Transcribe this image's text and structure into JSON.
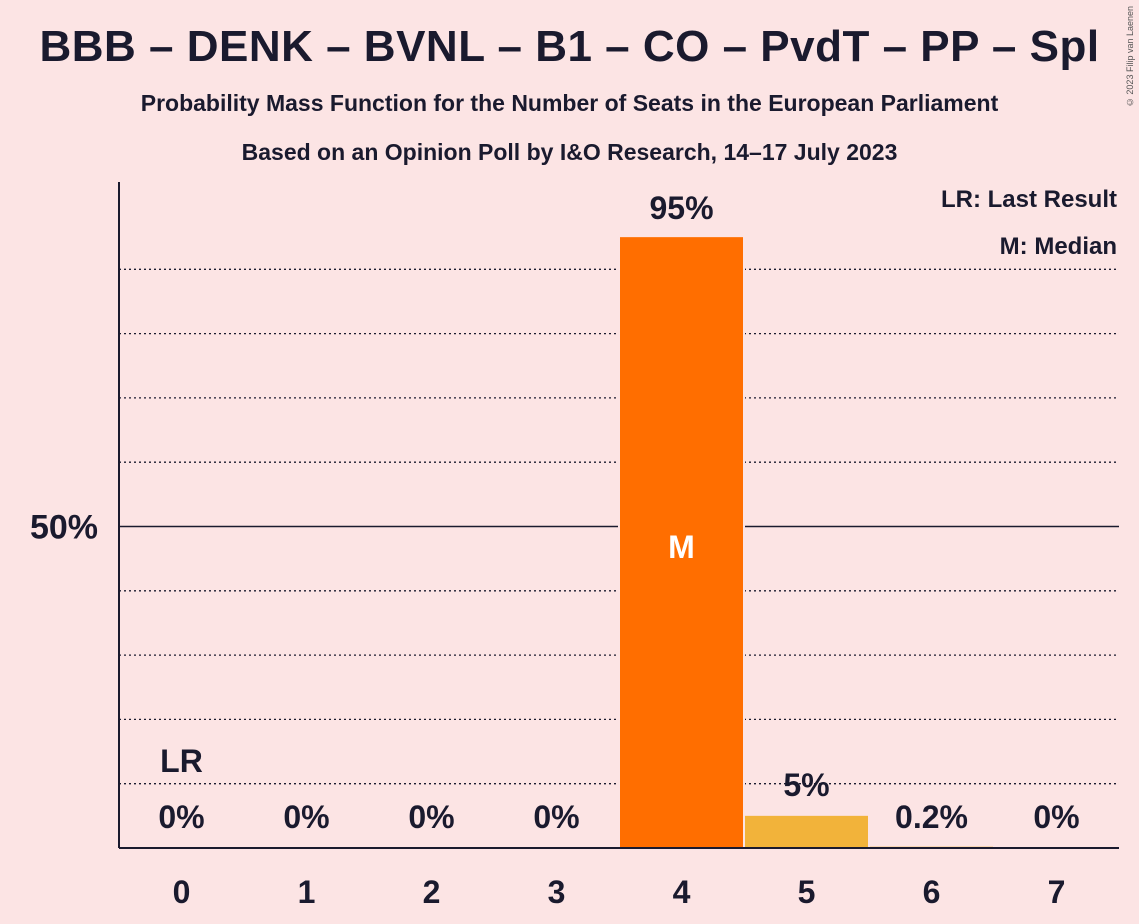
{
  "header": {
    "title": "BBB – DENK – BVNL – B1 – CO – PvdT – PP – Spl",
    "subtitle1": "Probability Mass Function for the Number of Seats in the European Parliament",
    "subtitle2": "Based on an Opinion Poll by I&O Research, 14–17 July 2023",
    "copyright": "© 2023 Filip van Laenen"
  },
  "legend": {
    "last_result": "LR: Last Result",
    "median": "M: Median"
  },
  "colors": {
    "background": "#fce4e4",
    "bar_main": "#ff6e00",
    "bar_secondary": "#f2b33a",
    "text": "#1a1a2e"
  },
  "chart_data": {
    "type": "bar",
    "categories": [
      "0",
      "1",
      "2",
      "3",
      "4",
      "5",
      "6",
      "7"
    ],
    "values": [
      0,
      0,
      0,
      0,
      95,
      5,
      0.2,
      0
    ],
    "value_labels": [
      "0%",
      "0%",
      "0%",
      "0%",
      "95%",
      "5%",
      "0.2%",
      "0%"
    ],
    "ylim": [
      0,
      100
    ],
    "y_tick_label": "50%",
    "y_tick_value": 50,
    "gridlines_dotted_every": 10,
    "median_category": "4",
    "median_marker": "M",
    "last_result_category": "0",
    "last_result_marker": "LR",
    "title": "",
    "xlabel": "",
    "ylabel": "",
    "grid": true,
    "legend_position": "top-right"
  }
}
